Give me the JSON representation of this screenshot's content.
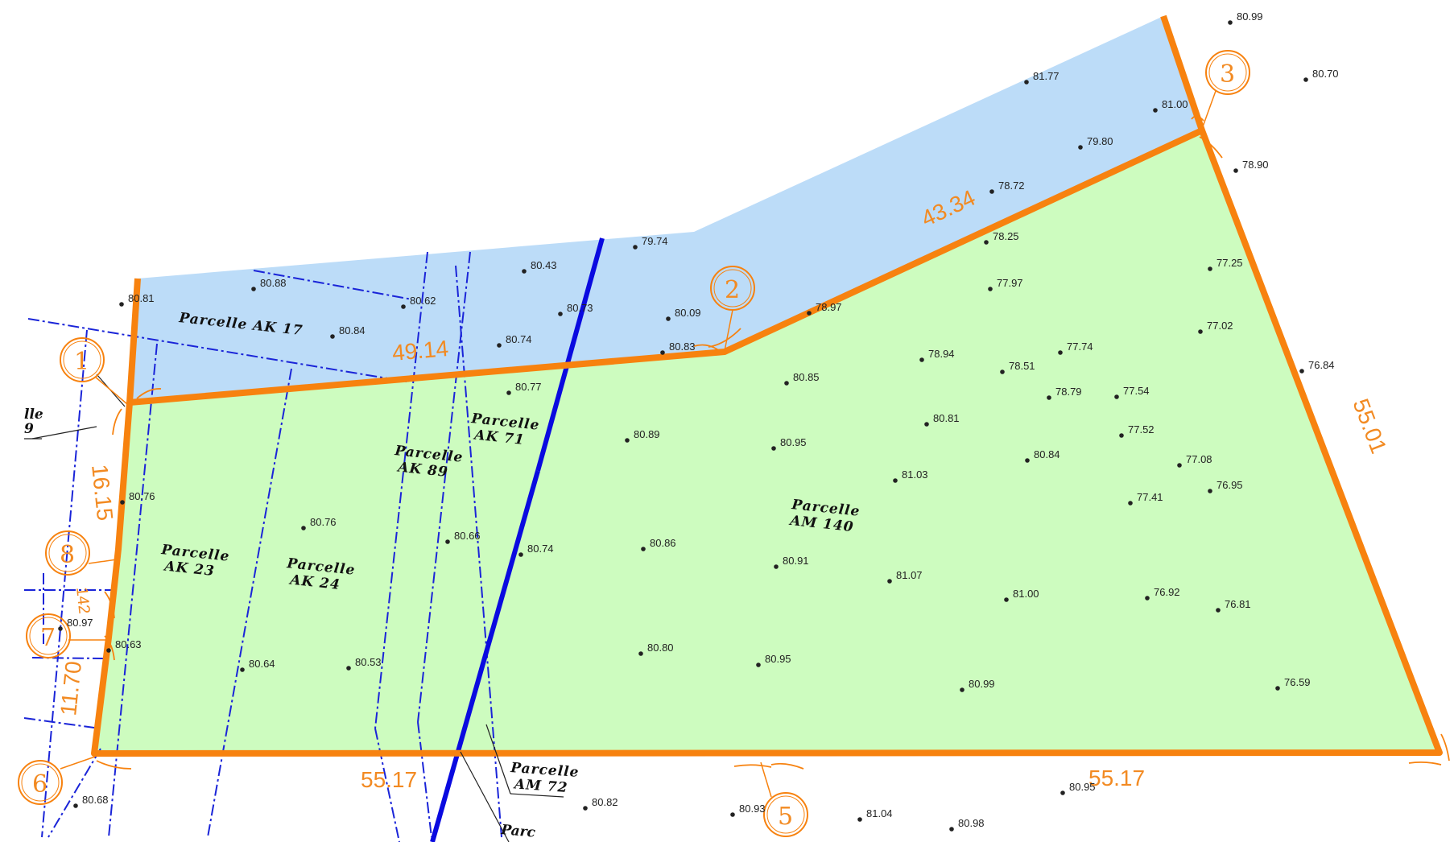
{
  "colors": {
    "boundary": "#f7820f",
    "north_fill": "#bcdcf8",
    "south_fill": "#cdfcbf",
    "blue_line": "#0a0ae0",
    "dash_line": "#1a24d8",
    "text": "#111111"
  },
  "parcels": [
    {
      "label": "Parcelle  AK  17"
    },
    {
      "label": "Parcelle",
      "label2": "AK  71"
    },
    {
      "label": "Parcelle",
      "label2": "AK  89"
    },
    {
      "label": "Parcelle",
      "label2": "AK  23"
    },
    {
      "label": "Parcelle",
      "label2": "AK  24"
    },
    {
      "label": "Parcelle",
      "label2": "AM  140"
    },
    {
      "label": "Parcelle",
      "label2": "AM  72"
    }
  ],
  "partial_labels": [
    "lle",
    "9",
    "Parc  "
  ],
  "dimensions": [
    "49.14",
    "43.34",
    "55.01",
    "55.17",
    "55.17",
    "16.15",
    "142",
    "11.70"
  ],
  "points": [
    "1",
    "2",
    "3",
    "5",
    "6",
    "7",
    "8"
  ],
  "elevations": [
    "80.99",
    "80.70",
    "81.77",
    "81.00",
    "79.80",
    "78.90",
    "78.72",
    "80.88",
    "80.43",
    "79.74",
    "80.81",
    "80.62",
    "80.73",
    "80.09",
    "80.84",
    "80.74",
    "80.83",
    "78.97",
    "78.25",
    "77.25",
    "77.97",
    "77.02",
    "77.74",
    "78.94",
    "78.51",
    "80.77",
    "80.85",
    "78.79",
    "77.54",
    "76.84",
    "80.81",
    "80.89",
    "80.95",
    "77.52",
    "80.84",
    "77.08",
    "81.03",
    "80.76",
    "77.41",
    "76.95",
    "80.76",
    "80.66",
    "80.86",
    "80.74",
    "80.91",
    "81.07",
    "81.00",
    "76.92",
    "76.81",
    "80.97",
    "80.63",
    "80.80",
    "80.64",
    "80.53",
    "80.95",
    "80.99",
    "76.59",
    "80.68",
    "80.82",
    "80.93",
    "81.04",
    "80.98",
    "80.95"
  ]
}
